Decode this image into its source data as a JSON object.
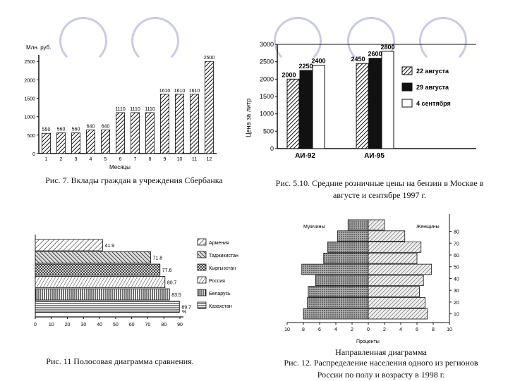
{
  "decor": {
    "rings": [
      0,
      1,
      2,
      3,
      4,
      5
    ]
  },
  "captions": {
    "fig7": "Рис. 7. Вклады граждан в учреждения Сбербанка",
    "fig510": "Рис. 5.10. Средние розничные цены на бензин в Москве в августе и сентябре 1997 г.",
    "fig11": "Рис. 11 Полосовая диаграмма сравнения.",
    "fig12_title": "Направленная диаграмма",
    "fig12": "Рис. 12. Распределение населения одного из регионов России по полу и возрасту в 1998 г."
  },
  "chart_data": [
    {
      "id": "fig7",
      "type": "bar",
      "ylabel": "Млн. руб.",
      "xlabel": "Месяцы",
      "categories": [
        "1",
        "2",
        "3",
        "4",
        "5",
        "6",
        "7",
        "8",
        "9",
        "10",
        "11",
        "12"
      ],
      "values": [
        550,
        560,
        560,
        640,
        640,
        1110,
        1110,
        1110,
        1610,
        1610,
        1610,
        2500
      ],
      "data_labels": [
        "550",
        "560",
        "560",
        "640",
        "640",
        "1110",
        "1110",
        "1110",
        "1610",
        "1610",
        "1610",
        "2500"
      ],
      "ylim": [
        0,
        2600
      ],
      "yticks": [
        0,
        500,
        1000,
        1500,
        2000,
        2500
      ]
    },
    {
      "id": "fig510",
      "type": "bar",
      "ylabel": "Цена за литр",
      "categories": [
        "АИ-92",
        "АИ-95"
      ],
      "series": [
        {
          "name": "22 августа",
          "values": [
            2000,
            2450
          ],
          "labels": [
            "2000",
            "2450"
          ]
        },
        {
          "name": "29 августа",
          "values": [
            2250,
            2600
          ],
          "labels": [
            "2250",
            "2600"
          ]
        },
        {
          "name": "4 сентября",
          "values": [
            2400,
            2800
          ],
          "labels": [
            "2400",
            "2800"
          ]
        }
      ],
      "ylim": [
        0,
        3000
      ],
      "yticks": [
        0,
        500,
        1000,
        1500,
        2000,
        2500,
        3000
      ]
    },
    {
      "id": "fig11",
      "type": "bar",
      "orientation": "horizontal",
      "xlabel": "%",
      "categories": [
        "Армения",
        "Таджикистан",
        "Кыргызстан",
        "Россия",
        "Беларусь",
        "Казахстан"
      ],
      "values": [
        41.9,
        71.8,
        77.6,
        80.7,
        83.5,
        89.7
      ],
      "data_labels": [
        "41.9",
        "71.8",
        "77.6",
        "80.7",
        "83.5",
        "89.7"
      ],
      "xlim": [
        0,
        90
      ],
      "xticks": [
        0,
        10,
        20,
        30,
        40,
        50,
        60,
        70,
        80,
        90
      ]
    },
    {
      "id": "fig12",
      "type": "bar",
      "orientation": "horizontal-diverging",
      "xlabel": "Проценты",
      "left_label": "Мужчины",
      "right_label": "Женщины",
      "age_ticks": [
        10,
        20,
        30,
        40,
        50,
        60,
        70,
        80
      ],
      "xticks_labels": [
        "10",
        "8",
        "6",
        "4",
        "2",
        "0",
        "2",
        "4",
        "6",
        "8",
        "10"
      ],
      "men": [
        8.0,
        7.5,
        7.4,
        6.5,
        8.2,
        5.5,
        5.0,
        3.8,
        2.5
      ],
      "women": [
        7.3,
        7.0,
        6.3,
        6.8,
        7.8,
        6.0,
        6.5,
        4.5,
        2.0
      ]
    }
  ]
}
